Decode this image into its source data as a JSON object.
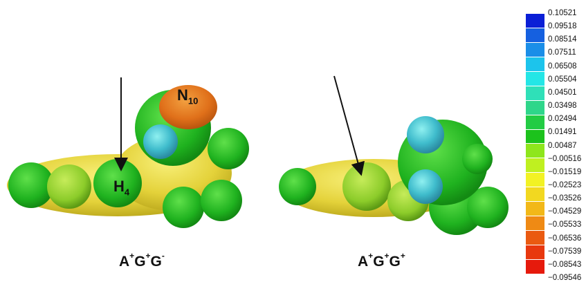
{
  "panels": [
    {
      "title_base": "A",
      "title_sup1": "+",
      "title_mid": "G",
      "title_sup2": "+",
      "title_end": "G",
      "title_sup3": "-",
      "atoms": [
        {
          "symbol": "N",
          "sub": "10"
        },
        {
          "symbol": "H",
          "sub": "4"
        }
      ]
    },
    {
      "title_base": "A",
      "title_sup1": "+",
      "title_mid": "G",
      "title_sup2": "+",
      "title_end": "G",
      "title_sup3": "+"
    }
  ],
  "colorbar": {
    "ticks": [
      "0.10521",
      "0.09518",
      "0.08514",
      "0.07511",
      "0.06508",
      "0.05504",
      "0.04501",
      "0.03498",
      "0.02494",
      "0.01491",
      "0.00487",
      "−0.00516",
      "−0.01519",
      "−0.02523",
      "−0.03526",
      "−0.04529",
      "−0.05533",
      "−0.06536",
      "−0.07539",
      "−0.08543",
      "−0.09546"
    ],
    "colors": [
      "#0a1fd6",
      "#1560e0",
      "#1a8ee8",
      "#1cc4ec",
      "#24e6e6",
      "#2fe0b8",
      "#2ed68a",
      "#22cc44",
      "#1cc21c",
      "#8ee61c",
      "#bff020",
      "#f2f224",
      "#f2d820",
      "#f2b818",
      "#ef8a14",
      "#ea5a10",
      "#e8380e",
      "#e61a0c"
    ]
  }
}
